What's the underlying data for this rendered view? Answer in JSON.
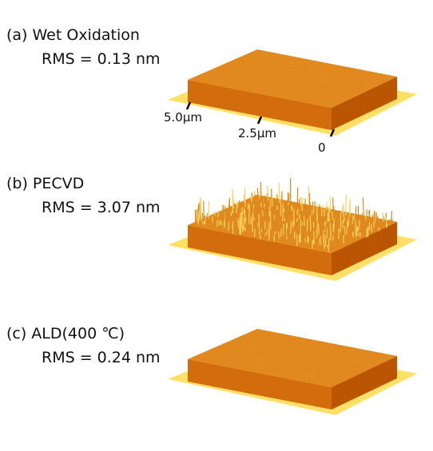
{
  "panels": [
    {
      "label": "(a) Wet  Oxidation",
      "rms": "RMS = 0.13 nm"
    },
    {
      "label": "(b) PECVD",
      "rms": "RMS = 3.07 nm"
    },
    {
      "label": "(c) ALD(400 ℃)",
      "rms": "RMS = 0.24 nm"
    }
  ],
  "axis_labels": [
    "5.0μm",
    "2.5μm",
    "0"
  ]
}
